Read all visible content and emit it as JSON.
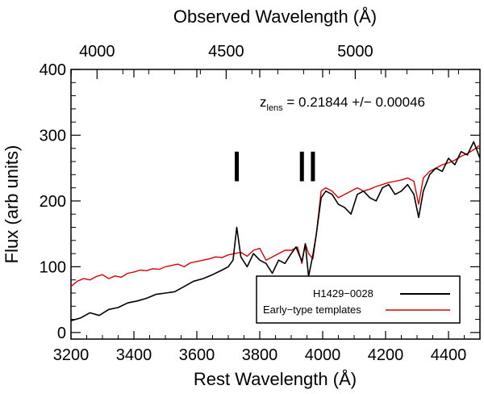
{
  "chart_data": {
    "type": "line",
    "title": "",
    "xlabel": "Rest Wavelength (Å)",
    "ylabel": "Flux (arb units)",
    "top_xlabel": "Observed Wavelength (Å)",
    "xlim": [
      3200,
      4500
    ],
    "ylim": [
      -10,
      400
    ],
    "top_xlim": [
      3899,
      5483
    ],
    "x_ticks": [
      3200,
      3400,
      3600,
      3800,
      4000,
      4200,
      4400
    ],
    "y_ticks": [
      0,
      100,
      200,
      300,
      400
    ],
    "top_x_ticks": [
      4000,
      4500,
      5000
    ],
    "x_tick_labels": [
      "3200",
      "3400",
      "3600",
      "3800",
      "4000",
      "4200",
      "4400"
    ],
    "y_tick_labels": [
      "0",
      "100",
      "200",
      "300",
      "400"
    ],
    "top_x_tick_labels": [
      "4000",
      "4500",
      "5000"
    ],
    "grid": false,
    "annotation": {
      "prefix": "z",
      "subscript": "lens",
      "text": " = 0.21844 +/− 0.00046"
    },
    "line_markers": [
      {
        "label": "I",
        "x": 3727,
        "y_range": [
          230,
          275
        ]
      },
      {
        "label": "I",
        "x": 3934,
        "y_range": [
          230,
          275
        ]
      },
      {
        "label": "I",
        "x": 3969,
        "y_range": [
          230,
          275
        ]
      }
    ],
    "legend": {
      "position": "bottom-right",
      "entries": [
        {
          "label": "H1429−0028",
          "color": "#000000"
        },
        {
          "label": "Early−type templates",
          "color": "#dd0000"
        }
      ]
    },
    "series": [
      {
        "name": "H1429−0028",
        "color": "#000000",
        "x": [
          3200,
          3230,
          3260,
          3290,
          3320,
          3350,
          3380,
          3410,
          3440,
          3470,
          3500,
          3530,
          3560,
          3590,
          3620,
          3650,
          3680,
          3700,
          3715,
          3727,
          3740,
          3760,
          3780,
          3800,
          3820,
          3840,
          3860,
          3880,
          3900,
          3915,
          3934,
          3945,
          3955,
          3969,
          3980,
          3995,
          4010,
          4030,
          4050,
          4070,
          4090,
          4110,
          4130,
          4150,
          4170,
          4190,
          4210,
          4230,
          4250,
          4270,
          4290,
          4305,
          4320,
          4340,
          4360,
          4380,
          4400,
          4420,
          4440,
          4460,
          4480,
          4500
        ],
        "values": [
          18,
          22,
          30,
          26,
          35,
          38,
          45,
          48,
          52,
          58,
          60,
          62,
          70,
          78,
          82,
          88,
          95,
          100,
          110,
          160,
          115,
          100,
          120,
          110,
          105,
          90,
          110,
          105,
          120,
          130,
          108,
          135,
          85,
          118,
          150,
          205,
          215,
          210,
          195,
          190,
          180,
          210,
          215,
          205,
          200,
          220,
          225,
          210,
          215,
          225,
          210,
          175,
          215,
          240,
          250,
          245,
          265,
          255,
          275,
          270,
          290,
          265
        ]
      },
      {
        "name": "Early−type templates",
        "color": "#dd0000",
        "x": [
          3200,
          3220,
          3240,
          3260,
          3280,
          3300,
          3320,
          3340,
          3360,
          3380,
          3400,
          3420,
          3440,
          3460,
          3480,
          3500,
          3520,
          3540,
          3560,
          3580,
          3600,
          3620,
          3640,
          3660,
          3680,
          3700,
          3720,
          3740,
          3760,
          3780,
          3800,
          3820,
          3840,
          3860,
          3880,
          3900,
          3920,
          3934,
          3945,
          3955,
          3969,
          3980,
          3995,
          4010,
          4030,
          4050,
          4070,
          4090,
          4110,
          4130,
          4150,
          4170,
          4190,
          4210,
          4230,
          4250,
          4270,
          4290,
          4305,
          4320,
          4340,
          4360,
          4380,
          4400,
          4420,
          4440,
          4460,
          4480,
          4500
        ],
        "values": [
          70,
          78,
          82,
          80,
          85,
          88,
          82,
          86,
          84,
          90,
          92,
          95,
          94,
          97,
          96,
          100,
          102,
          104,
          100,
          106,
          108,
          110,
          112,
          115,
          114,
          118,
          120,
          122,
          116,
          125,
          128,
          110,
          115,
          120,
          125,
          125,
          130,
          105,
          135,
          120,
          112,
          150,
          215,
          220,
          215,
          205,
          210,
          215,
          220,
          215,
          218,
          222,
          225,
          228,
          230,
          232,
          235,
          230,
          195,
          235,
          245,
          250,
          255,
          258,
          262,
          268,
          272,
          278,
          285
        ]
      }
    ]
  }
}
